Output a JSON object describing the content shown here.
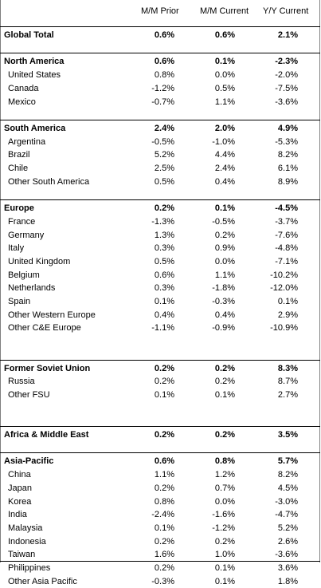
{
  "headers": [
    "M/M Prior",
    "M/M Current",
    "Y/Y Current"
  ],
  "rows": [
    {
      "label": "Global Total",
      "mm_prior": "0.6%",
      "mm_current": "0.6%",
      "yy_current": "2.1%",
      "level": "total",
      "gap_before": 0
    },
    {
      "label": "North America",
      "mm_prior": "0.6%",
      "mm_current": "0.1%",
      "yy_current": "-2.3%",
      "level": "region",
      "gap_before": 1
    },
    {
      "label": "United States",
      "mm_prior": "0.8%",
      "mm_current": "0.0%",
      "yy_current": "-2.0%",
      "level": "country",
      "gap_before": 0
    },
    {
      "label": "Canada",
      "mm_prior": "-1.2%",
      "mm_current": "0.5%",
      "yy_current": "-7.5%",
      "level": "country",
      "gap_before": 0
    },
    {
      "label": "Mexico",
      "mm_prior": "-0.7%",
      "mm_current": "1.1%",
      "yy_current": "-3.6%",
      "level": "country",
      "gap_before": 0
    },
    {
      "label": "South America",
      "mm_prior": "2.4%",
      "mm_current": "2.0%",
      "yy_current": "4.9%",
      "level": "region",
      "gap_before": 1
    },
    {
      "label": "Argentina",
      "mm_prior": "-0.5%",
      "mm_current": "-1.0%",
      "yy_current": "-5.3%",
      "level": "country",
      "gap_before": 0
    },
    {
      "label": "Brazil",
      "mm_prior": "5.2%",
      "mm_current": "4.4%",
      "yy_current": "8.2%",
      "level": "country",
      "gap_before": 0
    },
    {
      "label": "Chile",
      "mm_prior": "2.5%",
      "mm_current": "2.4%",
      "yy_current": "6.1%",
      "level": "country",
      "gap_before": 0
    },
    {
      "label": "Other South America",
      "mm_prior": "0.5%",
      "mm_current": "0.4%",
      "yy_current": "8.9%",
      "level": "country",
      "gap_before": 0
    },
    {
      "label": "Europe",
      "mm_prior": "0.2%",
      "mm_current": "0.1%",
      "yy_current": "-4.5%",
      "level": "region",
      "gap_before": 1
    },
    {
      "label": "France",
      "mm_prior": "-1.3%",
      "mm_current": "-0.5%",
      "yy_current": "-3.7%",
      "level": "country",
      "gap_before": 0
    },
    {
      "label": "Germany",
      "mm_prior": "1.3%",
      "mm_current": "0.2%",
      "yy_current": "-7.6%",
      "level": "country",
      "gap_before": 0
    },
    {
      "label": "Italy",
      "mm_prior": "0.3%",
      "mm_current": "0.9%",
      "yy_current": "-4.8%",
      "level": "country",
      "gap_before": 0
    },
    {
      "label": "United Kingdom",
      "mm_prior": "0.5%",
      "mm_current": "0.0%",
      "yy_current": "-7.1%",
      "level": "country",
      "gap_before": 0
    },
    {
      "label": "Belgium",
      "mm_prior": "0.6%",
      "mm_current": "1.1%",
      "yy_current": "-10.2%",
      "level": "country",
      "gap_before": 0
    },
    {
      "label": "Netherlands",
      "mm_prior": "0.3%",
      "mm_current": "-1.8%",
      "yy_current": "-12.0%",
      "level": "country",
      "gap_before": 0
    },
    {
      "label": "Spain",
      "mm_prior": "0.1%",
      "mm_current": "-0.3%",
      "yy_current": "0.1%",
      "level": "country",
      "gap_before": 0
    },
    {
      "label": "Other Western Europe",
      "mm_prior": "0.4%",
      "mm_current": "0.4%",
      "yy_current": "2.9%",
      "level": "country",
      "gap_before": 0
    },
    {
      "label": "Other C&E Europe",
      "mm_prior": "-1.1%",
      "mm_current": "-0.9%",
      "yy_current": "-10.9%",
      "level": "country",
      "gap_before": 0
    },
    {
      "label": "Former Soviet Union",
      "mm_prior": "0.2%",
      "mm_current": "0.2%",
      "yy_current": "8.3%",
      "level": "region",
      "gap_before": 2
    },
    {
      "label": "Russia",
      "mm_prior": "0.2%",
      "mm_current": "0.2%",
      "yy_current": "8.7%",
      "level": "country",
      "gap_before": 0
    },
    {
      "label": "Other FSU",
      "mm_prior": "0.1%",
      "mm_current": "0.1%",
      "yy_current": "2.7%",
      "level": "country",
      "gap_before": 0
    },
    {
      "label": "Africa & Middle East",
      "mm_prior": "0.2%",
      "mm_current": "0.2%",
      "yy_current": "3.5%",
      "level": "region",
      "gap_before": 2
    },
    {
      "label": "Asia-Pacific",
      "mm_prior": "0.6%",
      "mm_current": "0.8%",
      "yy_current": "5.7%",
      "level": "region",
      "gap_before": 1
    },
    {
      "label": "China",
      "mm_prior": "1.1%",
      "mm_current": "1.2%",
      "yy_current": "8.2%",
      "level": "country",
      "gap_before": 0
    },
    {
      "label": "Japan",
      "mm_prior": "0.2%",
      "mm_current": "0.7%",
      "yy_current": "4.5%",
      "level": "country",
      "gap_before": 0
    },
    {
      "label": "Korea",
      "mm_prior": "0.8%",
      "mm_current": "0.0%",
      "yy_current": "-3.0%",
      "level": "country",
      "gap_before": 0
    },
    {
      "label": "India",
      "mm_prior": "-2.4%",
      "mm_current": "-1.6%",
      "yy_current": "-4.7%",
      "level": "country",
      "gap_before": 0
    },
    {
      "label": "Malaysia",
      "mm_prior": "0.1%",
      "mm_current": "-1.2%",
      "yy_current": "5.2%",
      "level": "country",
      "gap_before": 0
    },
    {
      "label": "Indonesia",
      "mm_prior": "0.2%",
      "mm_current": "0.2%",
      "yy_current": "2.6%",
      "level": "country",
      "gap_before": 0
    },
    {
      "label": "Taiwan",
      "mm_prior": "1.6%",
      "mm_current": "1.0%",
      "yy_current": "-3.6%",
      "level": "country",
      "gap_before": 0
    },
    {
      "label": "Philippines",
      "mm_prior": "0.2%",
      "mm_current": "0.1%",
      "yy_current": "3.6%",
      "level": "country",
      "gap_before": 0
    },
    {
      "label": "Other Asia Pacific",
      "mm_prior": "-0.3%",
      "mm_current": "0.1%",
      "yy_current": "1.8%",
      "level": "country",
      "gap_before": 0
    }
  ]
}
